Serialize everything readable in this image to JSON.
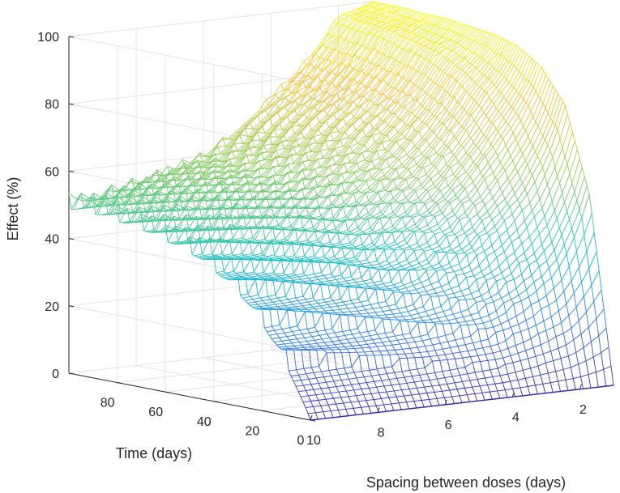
{
  "chart_data": {
    "type": "surface-mesh",
    "title": "",
    "zlabel": "Effect (%)",
    "xlabel": "Spacing between doses (days)",
    "ylabel": "Time (days)",
    "zlim": [
      0,
      100
    ],
    "z_ticks": [
      "0",
      "20",
      "40",
      "60",
      "80",
      "100"
    ],
    "spacing_ticks": [
      "10",
      "8",
      "6",
      "4",
      "2"
    ],
    "time_ticks": [
      "0",
      "20",
      "40",
      "60",
      "80"
    ],
    "spacing_range": [
      1,
      10
    ],
    "time_range": [
      0,
      100
    ],
    "grid": true,
    "colormap": [
      "#3e26a8",
      "#2c7ef7",
      "#19c2c8",
      "#8fd05a",
      "#f6c23a",
      "#f9fb0e"
    ],
    "series": [
      {
        "spacing": 10,
        "time": [
          0,
          10,
          20,
          30,
          40,
          50,
          60,
          70,
          80,
          90,
          100
        ],
        "effect": [
          0,
          16,
          27,
          35,
          40,
          44,
          46,
          48,
          49,
          50,
          50
        ]
      },
      {
        "spacing": 6,
        "time": [
          0,
          10,
          20,
          30,
          40,
          50,
          60,
          70,
          80,
          90,
          100
        ],
        "effect": [
          0,
          18,
          31,
          40,
          46,
          51,
          54,
          56,
          58,
          59,
          60
        ]
      },
      {
        "spacing": 4,
        "time": [
          0,
          10,
          20,
          30,
          40,
          50,
          60,
          70,
          80,
          90,
          100
        ],
        "effect": [
          0,
          21,
          38,
          50,
          58,
          64,
          68,
          71,
          73,
          74,
          75
        ]
      },
      {
        "spacing": 2,
        "time": [
          0,
          10,
          20,
          30,
          40,
          50,
          60,
          70,
          80,
          90,
          100
        ],
        "effect": [
          0,
          33,
          57,
          72,
          81,
          87,
          91,
          93,
          95,
          96,
          97
        ]
      },
      {
        "spacing": 1,
        "time": [
          0,
          10,
          20,
          30,
          40,
          50,
          60,
          70,
          80,
          90,
          100
        ],
        "effect": [
          0,
          55,
          80,
          90,
          95,
          97,
          98,
          99,
          99,
          100,
          100
        ]
      }
    ]
  }
}
